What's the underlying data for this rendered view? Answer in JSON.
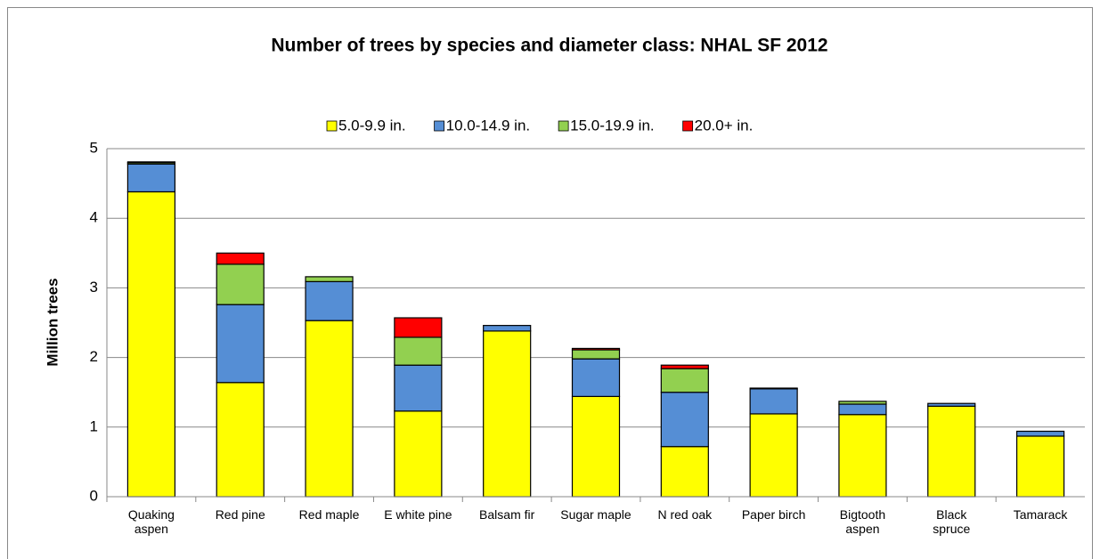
{
  "chart_data": {
    "type": "stacked_bar",
    "title": "Number of trees by species and diameter class:  NHAL SF  2012",
    "y_label": "Million trees",
    "categories": [
      "Quaking\naspen",
      "Red pine",
      "Red maple",
      "E white pine",
      "Balsam fir",
      "Sugar maple",
      "N red oak",
      "Paper birch",
      "Bigtooth\naspen",
      "Black\nspruce",
      "Tamarack"
    ],
    "series": [
      {
        "name": "5.0-9.9 in.",
        "color": "#ffff00",
        "values": [
          4.38,
          1.64,
          2.53,
          1.23,
          2.38,
          1.44,
          0.72,
          1.19,
          1.18,
          1.3,
          0.87
        ]
      },
      {
        "name": "10.0-14.9 in.",
        "color": "#558ed5",
        "values": [
          0.4,
          1.12,
          0.56,
          0.66,
          0.08,
          0.54,
          0.78,
          0.36,
          0.15,
          0.04,
          0.07
        ]
      },
      {
        "name": "15.0-19.9 in.",
        "color": "#92d050",
        "values": [
          0.02,
          0.58,
          0.07,
          0.4,
          0,
          0.13,
          0.34,
          0.01,
          0.04,
          0,
          0
        ]
      },
      {
        "name": "20.0+ in.",
        "color": "#ff0000",
        "values": [
          0.01,
          0.16,
          0,
          0.28,
          0,
          0.02,
          0.05,
          0,
          0,
          0,
          0
        ]
      }
    ],
    "ylim": [
      0,
      5
    ],
    "yticks": [
      0,
      1,
      2,
      3,
      4,
      5
    ],
    "grid": true,
    "legend": "top"
  }
}
